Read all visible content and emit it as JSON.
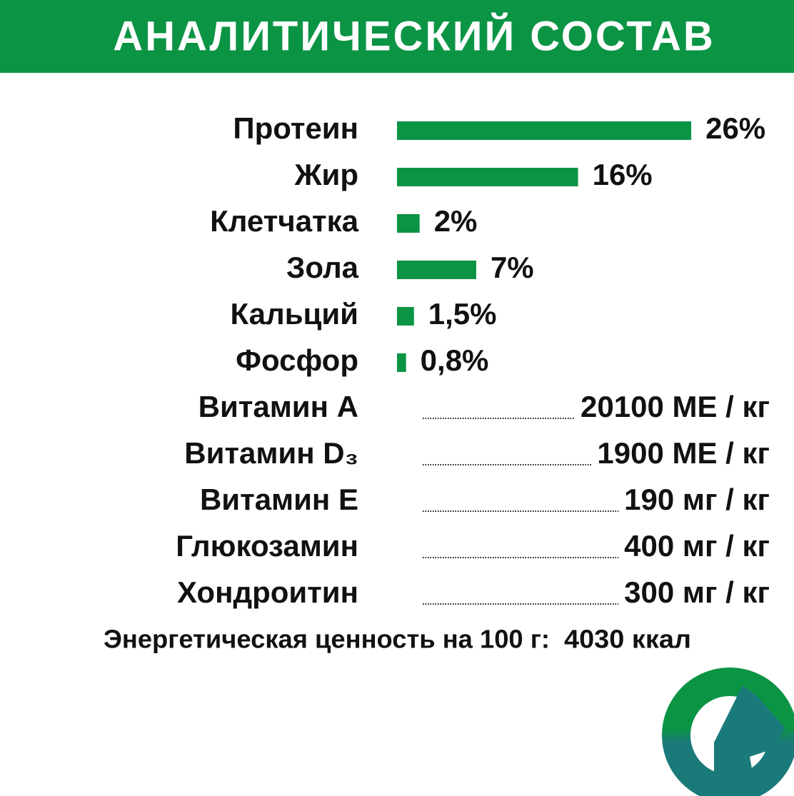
{
  "chart_data": {
    "type": "bar",
    "title": "АНАЛИТИЧЕСКИЙ СОСТАВ",
    "categories": [
      "Протеин",
      "Жир",
      "Клетчатка",
      "Зола",
      "Кальций",
      "Фосфор"
    ],
    "values": [
      26,
      16,
      2,
      7,
      1.5,
      0.8
    ],
    "value_labels": [
      "26%",
      "16%",
      "2%",
      "7%",
      "1,5%",
      "0,8%"
    ],
    "color": "#0b9444"
  },
  "vitamins": [
    {
      "label": "Витамин A",
      "value": "20100 МЕ / кг"
    },
    {
      "label": "Витамин D₃",
      "value": "1900 МЕ / кг"
    },
    {
      "label": "Витамин E",
      "value": "190 мг / кг"
    },
    {
      "label": "Глюкозамин",
      "value": "400 мг / кг"
    },
    {
      "label": "Хондроитин",
      "value": "300 мг / кг"
    }
  ],
  "energy": {
    "label": "Энергетическая ценность на 100 г:",
    "value": "4030 ккал"
  }
}
